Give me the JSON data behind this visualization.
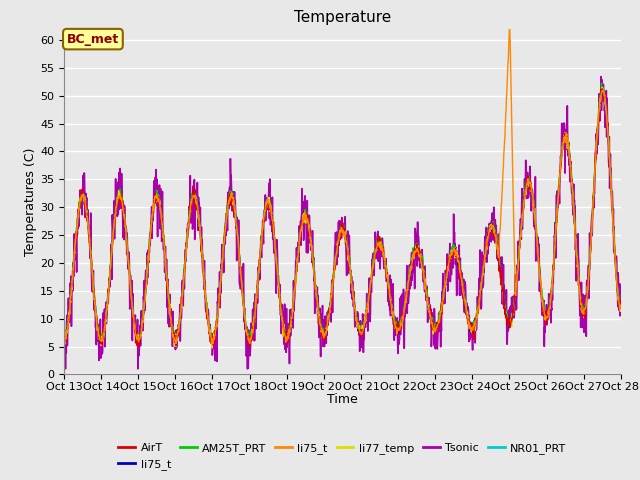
{
  "title": "Temperature",
  "xlabel": "Time",
  "ylabel": "Temperatures (C)",
  "ylim": [
    0,
    62
  ],
  "yticks": [
    0,
    5,
    10,
    15,
    20,
    25,
    30,
    35,
    40,
    45,
    50,
    55,
    60
  ],
  "xtick_labels": [
    "Oct 13",
    "Oct 14",
    "Oct 15",
    "Oct 16",
    "Oct 17",
    "Oct 18",
    "Oct 19",
    "Oct 20",
    "Oct 21",
    "Oct 22",
    "Oct 23",
    "Oct 24",
    "Oct 25",
    "Oct 26",
    "Oct 27",
    "Oct 28"
  ],
  "annotation_text": "BC_met",
  "annotation_color": "#8B0000",
  "annotation_bg": "#FFFF99",
  "annotation_border": "#8B6000",
  "series": [
    {
      "label": "AirT",
      "color": "#DD0000"
    },
    {
      "label": "li75_t",
      "color": "#0000BB"
    },
    {
      "label": "AM25T_PRT",
      "color": "#00CC00"
    },
    {
      "label": "li75_t",
      "color": "#FF8800"
    },
    {
      "label": "li77_temp",
      "color": "#DDDD00"
    },
    {
      "label": "Tsonic",
      "color": "#AA00AA"
    },
    {
      "label": "NR01_PRT",
      "color": "#00CCCC"
    }
  ],
  "axes_bg": "#E8E8E8",
  "fig_bg": "#E8E8E8",
  "grid_color": "#FFFFFF",
  "n_points": 1500
}
